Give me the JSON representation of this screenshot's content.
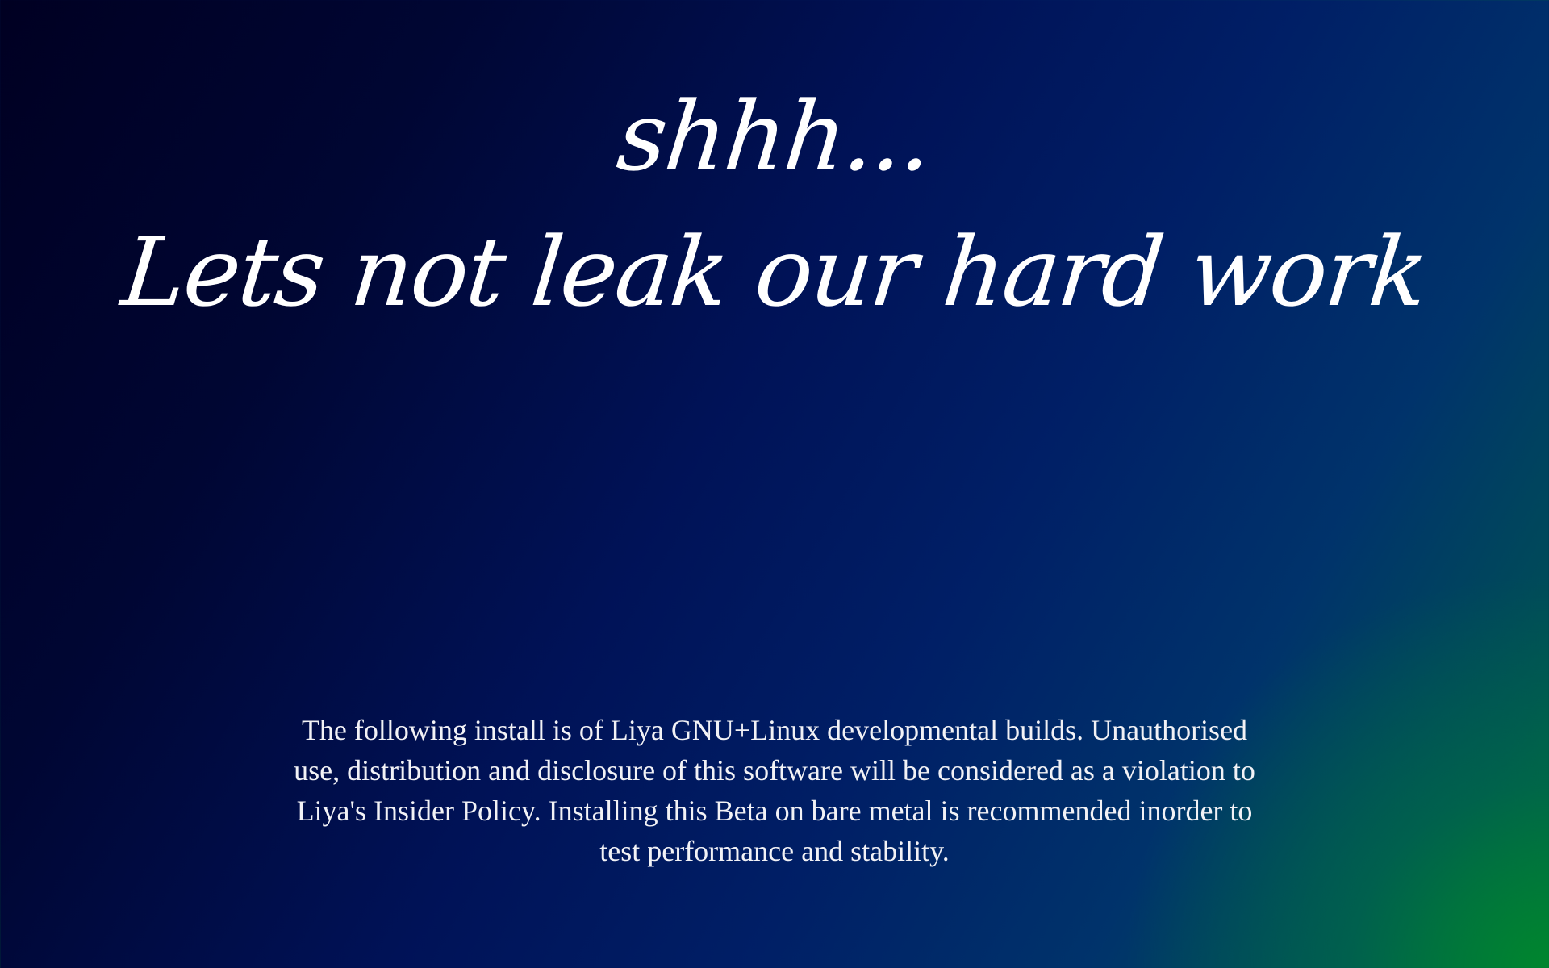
{
  "heading": {
    "line1": "shhh...",
    "line2": "Lets not leak our hard work"
  },
  "notice": {
    "text": "The following install is of Liya GNU+Linux developmental builds. Unauthorised use, distribution and disclosure of this software will be considered as a violation to Liya's Insider Policy. Installing this Beta on bare metal is recommended inorder to test performance and stability."
  },
  "theme": {
    "background_dark": "#000022",
    "background_blue": "#001f66",
    "background_green": "#00703a",
    "text_color": "#ffffff"
  }
}
